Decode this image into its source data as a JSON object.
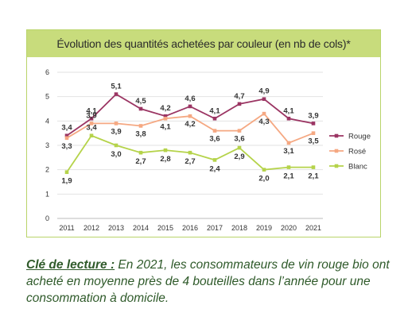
{
  "chart_data": {
    "type": "line",
    "title": "Évolution des quantités achetées par couleur (en nb de cols)*",
    "x": [
      "2011",
      "2012",
      "2013",
      "2014",
      "2015",
      "2016",
      "2017",
      "2018",
      "2019",
      "2020",
      "2021"
    ],
    "ylim": [
      0,
      6
    ],
    "yticks": [
      "0",
      "1",
      "2",
      "3",
      "4",
      "5",
      "6"
    ],
    "grid": true,
    "legend_position": "right",
    "series": [
      {
        "name": "Rouge",
        "color": "#9b3563",
        "values": [
          3.4,
          4.1,
          5.1,
          4.5,
          4.2,
          4.6,
          4.1,
          4.7,
          4.9,
          4.1,
          3.9
        ],
        "labels": [
          "3,4",
          "4,1",
          "5,1",
          "4,5",
          "4,2",
          "4,6",
          "4,1",
          "4,7",
          "4,9",
          "4,1",
          "3,9"
        ]
      },
      {
        "name": "Rosé",
        "color": "#f5a882",
        "values": [
          3.3,
          3.9,
          3.9,
          3.8,
          4.1,
          4.2,
          3.6,
          3.6,
          4.3,
          3.1,
          3.5
        ],
        "labels": [
          "3,3",
          "3,9",
          "3,9",
          "3,8",
          "4,1",
          "4,2",
          "3,6",
          "3,6",
          "4,3",
          "3,1",
          "3,5"
        ]
      },
      {
        "name": "Blanc",
        "color": "#b5d34a",
        "values": [
          1.9,
          3.4,
          3.0,
          2.7,
          2.8,
          2.7,
          2.4,
          2.9,
          2.0,
          2.1,
          2.1
        ],
        "labels": [
          "1,9",
          "3,4",
          "3,0",
          "2,7",
          "2,8",
          "2,7",
          "2,4",
          "2,9",
          "2,0",
          "2,1",
          "2,1"
        ]
      }
    ]
  },
  "caption": {
    "label": "Clé de lecture :",
    "text": " En 2021, les consommateurs de vin rouge bio ont acheté en moyenne près de 4 bouteilles dans l’année pour une consommation à domicile."
  }
}
